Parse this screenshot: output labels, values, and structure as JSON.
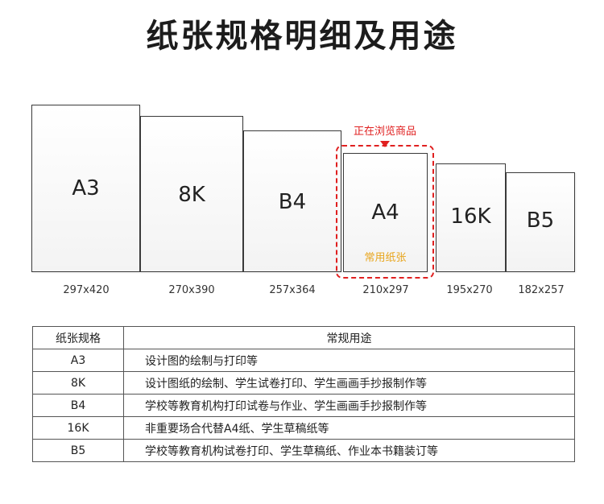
{
  "title": "纸张规格明细及用途",
  "papers": [
    {
      "label": "A3",
      "dims": "297x420"
    },
    {
      "label": "8K",
      "dims": "270x390"
    },
    {
      "label": "B4",
      "dims": "257x364"
    },
    {
      "label": "A4",
      "dims": "210x297",
      "sub": "常用纸张"
    },
    {
      "label": "16K",
      "dims": "195x270"
    },
    {
      "label": "B5",
      "dims": "182x257"
    }
  ],
  "highlight": {
    "badge": "正在浏览商品"
  },
  "colors": {
    "accent_red": "#e02020",
    "accent_orange": "#e8a51c"
  },
  "table": {
    "headers": [
      "纸张规格",
      "常规用途"
    ],
    "rows": [
      [
        "A3",
        "设计图的绘制与打印等"
      ],
      [
        "8K",
        "设计图纸的绘制、学生试卷打印、学生画画手抄报制作等"
      ],
      [
        "B4",
        "学校等教育机构打印试卷与作业、学生画画手抄报制作等"
      ],
      [
        "16K",
        "非重要场合代替A4纸、学生草稿纸等"
      ],
      [
        "B5",
        "学校等教育机构试卷打印、学生草稿纸、作业本书籍装订等"
      ]
    ]
  }
}
